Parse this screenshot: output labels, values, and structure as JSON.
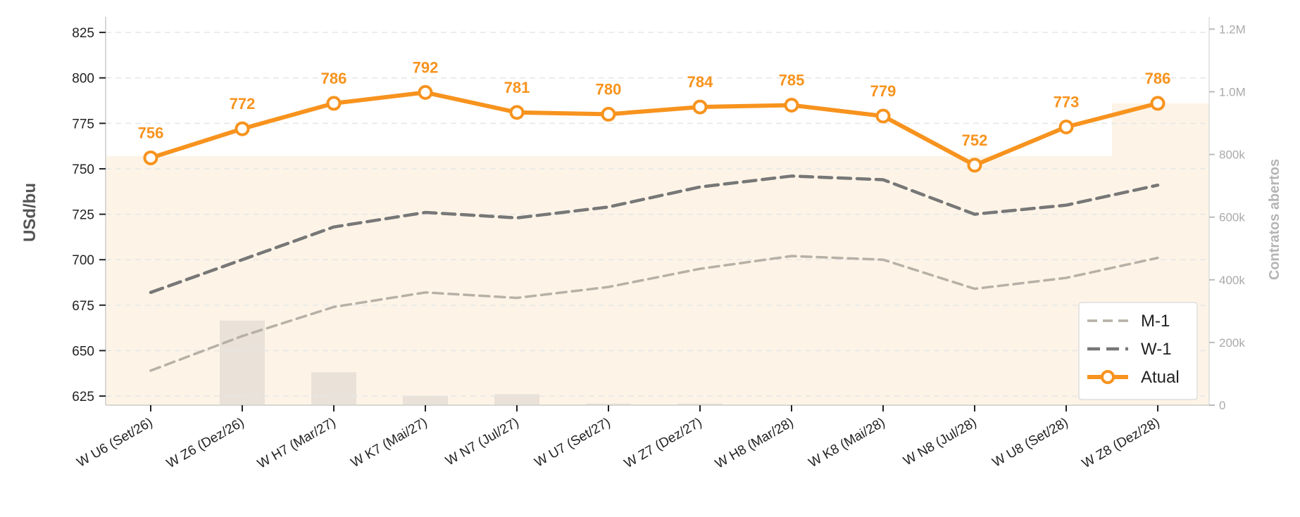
{
  "chart_data": {
    "type": "line",
    "categories": [
      "W U6 (Set/26)",
      "W Z6 (Dez/26)",
      "W H7 (Mar/27)",
      "W K7 (Mai/27)",
      "W N7 (Jul/27)",
      "W U7 (Set/27)",
      "W Z7 (Dez/27)",
      "W H8 (Mar/28)",
      "W K8 (Mai/28)",
      "W N8 (Jul/28)",
      "W U8 (Set/28)",
      "W Z8 (Dez/28)"
    ],
    "ylabel": "USd/bu",
    "ylim": [
      620,
      832
    ],
    "yticks": [
      625,
      650,
      675,
      700,
      725,
      750,
      775,
      800,
      825
    ],
    "y2label": "Contratos abertos",
    "y2lim": [
      0,
      1230000
    ],
    "y2ticks": [
      {
        "value": 0,
        "label": "0"
      },
      {
        "value": 200000,
        "label": "200k"
      },
      {
        "value": 400000,
        "label": "400k"
      },
      {
        "value": 600000,
        "label": "600k"
      },
      {
        "value": 800000,
        "label": "800k"
      },
      {
        "value": 1000000,
        "label": "1.0M"
      },
      {
        "value": 1200000,
        "label": "1.2M"
      }
    ],
    "series": [
      {
        "name": "M-1",
        "values": [
          639,
          658,
          674,
          682,
          679,
          685,
          695,
          702,
          700,
          684,
          690,
          701
        ],
        "color": "#b7b0a6",
        "style": "dashed-thin"
      },
      {
        "name": "W-1",
        "values": [
          682,
          700,
          718,
          726,
          723,
          729,
          740,
          746,
          744,
          725,
          730,
          741
        ],
        "color": "#777777",
        "style": "dashed-thick"
      },
      {
        "name": "Atual",
        "values": [
          756,
          772,
          786,
          792,
          781,
          780,
          784,
          785,
          779,
          752,
          773,
          786
        ],
        "color": "#F7931E",
        "style": "solid-markers",
        "data_labels": [
          "756",
          "772",
          "786",
          "792",
          "781",
          "780",
          "784",
          "785",
          "779",
          "752",
          "773",
          "786"
        ]
      }
    ],
    "open_interest": [
      0,
      270000,
      105000,
      30000,
      35000,
      5000,
      5000,
      0,
      0,
      0,
      0,
      0
    ],
    "shaded_band": {
      "before": 757,
      "after": 786,
      "switch_after_index": 10,
      "color": "#fdf4e7"
    },
    "legend": {
      "position": "bottom-right",
      "order": [
        "M-1",
        "W-1",
        "Atual"
      ]
    },
    "grid": {
      "y": true,
      "style": "dashed"
    }
  }
}
